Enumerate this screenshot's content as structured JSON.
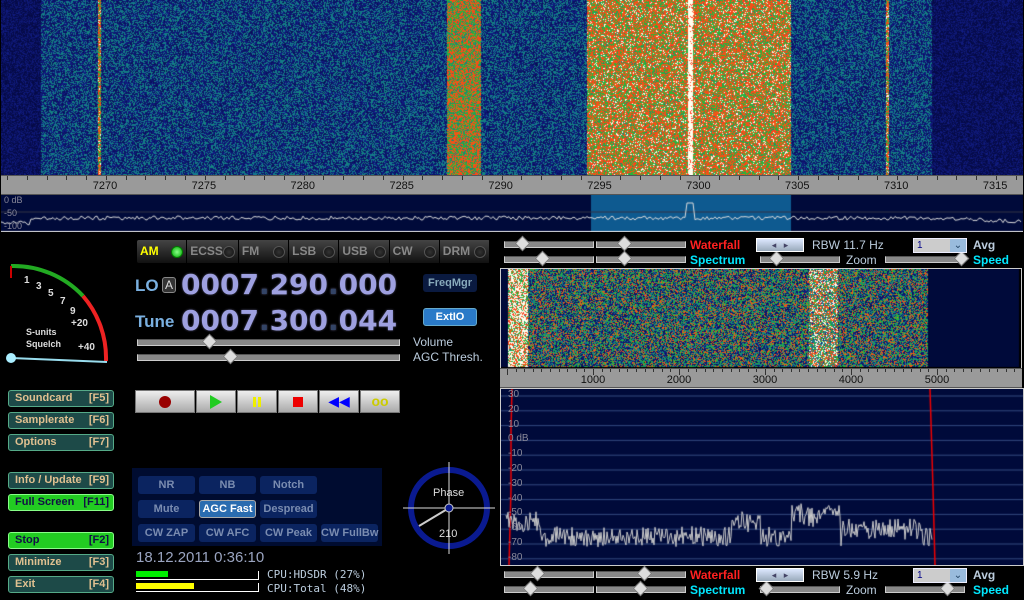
{
  "main_scale": {
    "ticks": [
      "7270",
      "7275",
      "7280",
      "7285",
      "7290",
      "7295",
      "7300",
      "7305",
      "7310",
      "7315"
    ],
    "db_labels": [
      "0 dB",
      "-50",
      "-100"
    ]
  },
  "modes": [
    {
      "label": "AM",
      "active": true
    },
    {
      "label": "ECSS",
      "active": false
    },
    {
      "label": "FM",
      "active": false
    },
    {
      "label": "LSB",
      "active": false
    },
    {
      "label": "USB",
      "active": false
    },
    {
      "label": "CW",
      "active": false
    },
    {
      "label": "DRM",
      "active": false
    }
  ],
  "lo": {
    "label": "LO",
    "lock": "A",
    "a": "0007",
    "b": "290",
    "c": "000"
  },
  "tune": {
    "label": "Tune",
    "a": "0007",
    "b": "300",
    "c": "044"
  },
  "freqmgr_label": "FreqMgr",
  "extio_label": "ExtIO",
  "sliders": {
    "volume_label": "Volume",
    "agc_label": "AGC Thresh.",
    "volume": 0.27,
    "agc": 0.35
  },
  "smeter": {
    "labels": [
      "1",
      "3",
      "5",
      "7",
      "9",
      "+20",
      "+40"
    ],
    "caption1": "S-units",
    "caption2": "Squelch"
  },
  "left_buttons": [
    {
      "label": "Soundcard",
      "key": "[F5]"
    },
    {
      "label": "Samplerate",
      "key": "[F6]"
    },
    {
      "label": "Options",
      "key": "[F7]"
    },
    {
      "label": "Info / Update",
      "key": "[F9]"
    },
    {
      "label": "Full Screen",
      "key": "[F11]"
    },
    {
      "label": "Stop",
      "key": "[F2]"
    },
    {
      "label": "Minimize",
      "key": "[F3]"
    },
    {
      "label": "Exit",
      "key": "[F4]"
    }
  ],
  "dsp": [
    {
      "label": "NR"
    },
    {
      "label": "NB"
    },
    {
      "label": "Notch"
    },
    {
      "label": "Mute"
    },
    {
      "label": "AGC Fast",
      "active": true
    },
    {
      "label": "Despread"
    },
    {
      "label": "CW ZAP"
    },
    {
      "label": "CW AFC"
    },
    {
      "label": "CW Peak"
    },
    {
      "label": "CW FullBw"
    }
  ],
  "datetime": "18.12.2011 0:36:10",
  "cpu": {
    "hdsdr": "CPU:HDSDR (27%)",
    "total": "CPU:Total (48%)",
    "hdsdr_pct": 27,
    "total_pct": 48
  },
  "phase": {
    "label": "Phase",
    "value": "210"
  },
  "rf_controls": {
    "waterfall": "Waterfall",
    "spectrum": "Spectrum",
    "rbw": "RBW 11.7 Hz",
    "avg_value": "1",
    "avg": "Avg",
    "zoom": "Zoom",
    "speed": "Speed"
  },
  "af_controls": {
    "waterfall": "Waterfall",
    "spectrum": "Spectrum",
    "rbw": "RBW  5.9 Hz",
    "avg_value": "1",
    "avg": "Avg",
    "zoom": "Zoom",
    "speed": "Speed"
  },
  "af_scale": {
    "ticks": [
      "1000",
      "2000",
      "3000",
      "4000",
      "5000"
    ],
    "db_labels": [
      "30",
      "20",
      "10",
      "0 dB",
      "-10",
      "-20",
      "-30",
      "-40",
      "-50",
      "-60",
      "-70",
      "-80"
    ]
  },
  "colors": {
    "accent_red": "#ff2020",
    "accent_cyan": "#00e8ff",
    "green": "#22dd22",
    "yellow": "#ffff00"
  }
}
